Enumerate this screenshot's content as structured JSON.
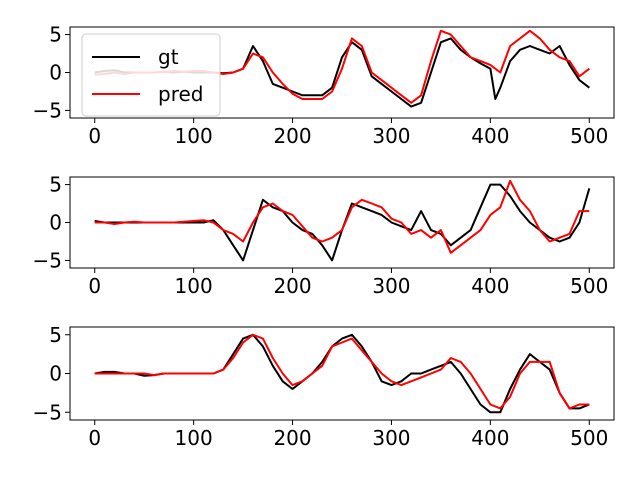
{
  "chart_data": [
    {
      "type": "line",
      "xlim": [
        -25,
        525
      ],
      "ylim": [
        -6,
        6
      ],
      "xticks": [
        0,
        100,
        200,
        300,
        400,
        500
      ],
      "xtick_labels": [
        "0",
        "100",
        "200",
        "300",
        "400",
        "500"
      ],
      "yticks": [
        -5,
        0,
        5
      ],
      "ytick_labels": [
        "−5",
        "0",
        "5"
      ],
      "legend": {
        "placement": "upper-left",
        "entries": [
          "gt",
          "pred"
        ]
      },
      "grid": false,
      "series": [
        {
          "name": "gt",
          "color": "#000000",
          "x": [
            0,
            10,
            20,
            30,
            40,
            50,
            60,
            70,
            80,
            90,
            100,
            110,
            120,
            130,
            140,
            150,
            160,
            170,
            180,
            190,
            200,
            210,
            220,
            230,
            240,
            250,
            260,
            270,
            280,
            290,
            300,
            310,
            320,
            330,
            340,
            350,
            360,
            370,
            380,
            390,
            400,
            405,
            410,
            420,
            430,
            440,
            450,
            460,
            470,
            480,
            490,
            500
          ],
          "y": [
            0,
            0.2,
            0.3,
            0,
            0,
            0,
            0,
            0.1,
            0,
            0.1,
            0,
            0,
            0,
            -0.1,
            0,
            0.5,
            3.5,
            1.5,
            -1.5,
            -2,
            -2.5,
            -3,
            -3,
            -3,
            -2,
            2,
            4,
            3,
            -0.5,
            -1.5,
            -2.5,
            -3.5,
            -4.5,
            -4,
            0,
            4,
            4.5,
            3,
            2,
            1.2,
            0.5,
            -3.5,
            -2,
            1.5,
            3,
            3.5,
            3,
            2.5,
            3.5,
            1,
            -1,
            -2
          ]
        },
        {
          "name": "pred",
          "color": "#ff0000",
          "x": [
            0,
            10,
            20,
            30,
            40,
            50,
            60,
            70,
            80,
            90,
            100,
            110,
            120,
            130,
            140,
            150,
            160,
            170,
            180,
            190,
            200,
            210,
            220,
            230,
            240,
            250,
            260,
            270,
            280,
            290,
            300,
            310,
            320,
            330,
            340,
            350,
            360,
            370,
            380,
            390,
            400,
            410,
            420,
            430,
            440,
            450,
            460,
            470,
            480,
            490,
            500
          ],
          "y": [
            -0.3,
            -0.2,
            0,
            -0.2,
            0,
            0,
            0,
            0.1,
            0.2,
            0.1,
            0.2,
            0.2,
            0,
            -0.2,
            0,
            0.5,
            2.5,
            2,
            0,
            -1.5,
            -2.8,
            -3.5,
            -3.5,
            -3.5,
            -2.5,
            0.5,
            4.5,
            3.5,
            0,
            -1,
            -2,
            -3,
            -4,
            -3,
            1.5,
            5.5,
            5,
            3.5,
            2,
            1.5,
            1,
            0,
            3.5,
            4.5,
            5.5,
            4.5,
            3,
            2,
            1.5,
            -0.5,
            0.5
          ]
        }
      ]
    },
    {
      "type": "line",
      "xlim": [
        -25,
        525
      ],
      "ylim": [
        -6,
        6
      ],
      "xticks": [
        0,
        100,
        200,
        300,
        400,
        500
      ],
      "xtick_labels": [
        "0",
        "100",
        "200",
        "300",
        "400",
        "500"
      ],
      "yticks": [
        -5,
        0,
        5
      ],
      "ytick_labels": [
        "−5",
        "0",
        "5"
      ],
      "grid": false,
      "series": [
        {
          "name": "gt",
          "color": "#000000",
          "x": [
            0,
            10,
            20,
            30,
            40,
            50,
            60,
            70,
            80,
            90,
            100,
            110,
            120,
            130,
            140,
            150,
            160,
            170,
            180,
            190,
            200,
            210,
            220,
            230,
            240,
            250,
            260,
            270,
            280,
            290,
            300,
            310,
            320,
            330,
            340,
            350,
            360,
            370,
            380,
            390,
            400,
            410,
            420,
            430,
            440,
            450,
            460,
            470,
            480,
            490,
            500
          ],
          "y": [
            0.2,
            0,
            0,
            0,
            0,
            0,
            0,
            0,
            0,
            0,
            0,
            0,
            0.3,
            -1,
            -3,
            -5,
            -1,
            3,
            2,
            1.5,
            0,
            -1,
            -1.5,
            -3,
            -5,
            -1,
            2.5,
            2,
            1.5,
            1,
            0,
            -0.5,
            -1,
            1.5,
            -1,
            -1.5,
            -3,
            -2,
            -1,
            2,
            5,
            5,
            3.5,
            1.5,
            0,
            -1,
            -2,
            -2.5,
            -2,
            0,
            4.5
          ]
        },
        {
          "name": "pred",
          "color": "#ff0000",
          "x": [
            0,
            10,
            20,
            30,
            40,
            50,
            60,
            70,
            80,
            90,
            100,
            110,
            120,
            130,
            140,
            150,
            160,
            170,
            180,
            190,
            200,
            210,
            220,
            230,
            240,
            250,
            260,
            270,
            280,
            290,
            300,
            310,
            320,
            330,
            340,
            350,
            360,
            370,
            380,
            390,
            400,
            410,
            420,
            430,
            440,
            450,
            460,
            470,
            480,
            490,
            500
          ],
          "y": [
            0,
            0,
            -0.2,
            0,
            0.1,
            0,
            0,
            0,
            0,
            0.1,
            0.2,
            0.3,
            0,
            -1,
            -1.5,
            -2.5,
            0,
            2,
            2.5,
            1.5,
            1,
            -0.5,
            -2,
            -2.5,
            -2,
            -1,
            2,
            3,
            2.5,
            2,
            0.5,
            0,
            -1.5,
            -1,
            -2,
            -1,
            -4,
            -3,
            -2,
            -1,
            1,
            2,
            5.5,
            3,
            1.5,
            -1,
            -2.5,
            -2,
            -1.5,
            1.5,
            1.5
          ]
        }
      ]
    },
    {
      "type": "line",
      "xlim": [
        -25,
        525
      ],
      "ylim": [
        -6,
        6
      ],
      "xticks": [
        0,
        100,
        200,
        300,
        400,
        500
      ],
      "xtick_labels": [
        "0",
        "100",
        "200",
        "300",
        "400",
        "500"
      ],
      "yticks": [
        -5,
        0,
        5
      ],
      "ytick_labels": [
        "−5",
        "0",
        "5"
      ],
      "grid": false,
      "series": [
        {
          "name": "gt",
          "color": "#000000",
          "x": [
            0,
            10,
            20,
            30,
            40,
            50,
            60,
            70,
            80,
            90,
            100,
            110,
            120,
            130,
            140,
            150,
            160,
            170,
            180,
            190,
            200,
            210,
            220,
            230,
            240,
            250,
            260,
            270,
            280,
            290,
            300,
            310,
            320,
            330,
            340,
            350,
            360,
            370,
            380,
            390,
            400,
            410,
            420,
            430,
            440,
            450,
            460,
            470,
            480,
            490,
            500
          ],
          "y": [
            0,
            0.2,
            0.2,
            0,
            0,
            -0.3,
            -0.2,
            0,
            0,
            0,
            0,
            0,
            0,
            0.5,
            2.5,
            4.5,
            5,
            3.5,
            1,
            -1,
            -2,
            -1,
            0,
            1.5,
            3.5,
            4.5,
            5,
            3.5,
            1.5,
            -1,
            -1.5,
            -1,
            0,
            0,
            0.5,
            1,
            1.5,
            0,
            -2,
            -4,
            -5,
            -5,
            -2,
            0.5,
            2.5,
            1.5,
            0.5,
            -2.5,
            -4.5,
            -4.5,
            -4
          ]
        },
        {
          "name": "pred",
          "color": "#ff0000",
          "x": [
            0,
            10,
            20,
            30,
            40,
            50,
            60,
            70,
            80,
            90,
            100,
            110,
            120,
            130,
            140,
            150,
            160,
            170,
            180,
            190,
            200,
            210,
            220,
            230,
            240,
            250,
            260,
            270,
            280,
            290,
            300,
            310,
            320,
            330,
            340,
            350,
            360,
            370,
            380,
            390,
            400,
            410,
            420,
            430,
            440,
            450,
            460,
            470,
            480,
            490,
            500
          ],
          "y": [
            0,
            0,
            0,
            0,
            0,
            0,
            -0.2,
            0,
            0,
            0,
            0,
            0,
            0,
            0.5,
            2,
            4,
            5,
            4.5,
            2,
            0,
            -1.5,
            -1,
            0,
            1,
            3.5,
            4,
            4.5,
            3,
            1.5,
            0,
            -1,
            -1.5,
            -1,
            -0.5,
            0,
            0.5,
            2,
            1.5,
            0,
            -2,
            -4,
            -4.5,
            -3,
            0,
            1.5,
            1.5,
            1.5,
            -2.5,
            -4.5,
            -4,
            -4
          ]
        }
      ]
    }
  ]
}
